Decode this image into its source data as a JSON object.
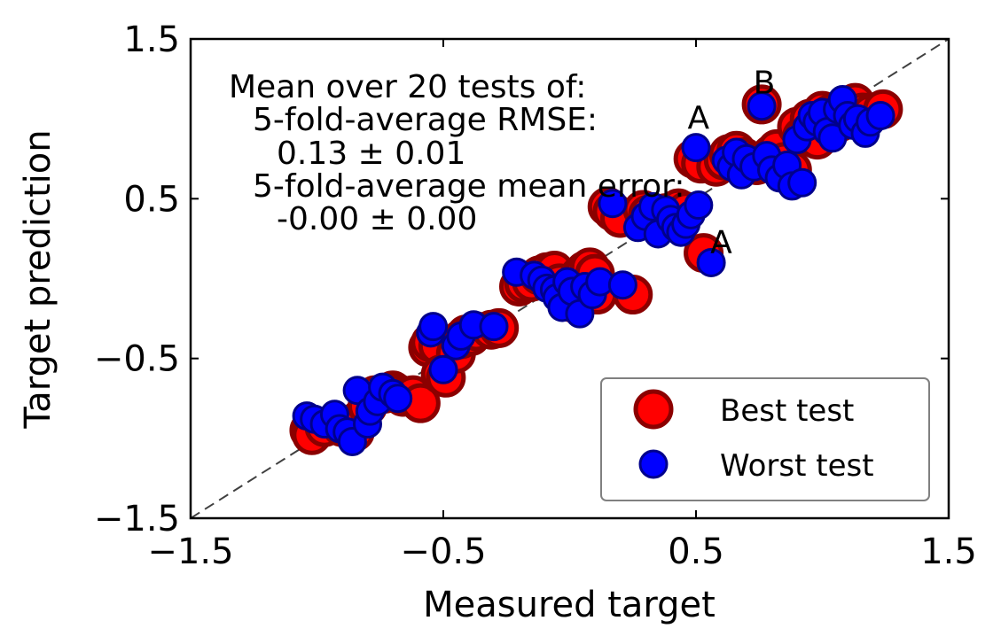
{
  "chart_data": {
    "type": "scatter",
    "title": "",
    "xlabel": "Measured target",
    "ylabel": "Target prediction",
    "xlim": [
      -1.5,
      1.5
    ],
    "ylim": [
      -1.5,
      1.5
    ],
    "xticks": [
      -1.5,
      -0.5,
      0.5,
      1.5
    ],
    "yticks": [
      -1.5,
      -0.5,
      0.5,
      1.5
    ],
    "xtick_labels": [
      "−1.5",
      "−0.5",
      "0.5",
      "1.5"
    ],
    "ytick_labels": [
      "−1.5",
      "−0.5",
      "0.5",
      "1.5"
    ],
    "grid": false,
    "legend_position": "lower-right",
    "reference_line": "y = x (dashed gray)",
    "annotation_lines": [
      "Mean over 20 tests of:",
      "5-fold-average RMSE:",
      "0.13 ± 0.01",
      "5-fold-average mean error:",
      "-0.00 ± 0.00"
    ],
    "point_labels": [
      {
        "text": "A",
        "x": 0.51,
        "y": 0.94
      },
      {
        "text": "A",
        "x": 0.6,
        "y": 0.16
      },
      {
        "text": "B",
        "x": 0.77,
        "y": 1.16
      }
    ],
    "series": [
      {
        "name": "Best test",
        "color": "#ff0000",
        "edge_color": "#8b0000",
        "points": [
          [
            -1.03,
            -0.95
          ],
          [
            -1.02,
            -0.98
          ],
          [
            -0.97,
            -0.93
          ],
          [
            -0.9,
            -0.93
          ],
          [
            -0.85,
            -0.96
          ],
          [
            -0.83,
            -0.88
          ],
          [
            -0.8,
            -0.8
          ],
          [
            -0.77,
            -0.73
          ],
          [
            -0.73,
            -0.72
          ],
          [
            -0.7,
            -0.7
          ],
          [
            -0.68,
            -0.72
          ],
          [
            -0.66,
            -0.74
          ],
          [
            -0.62,
            -0.73
          ],
          [
            -0.59,
            -0.78
          ],
          [
            -0.56,
            -0.43
          ],
          [
            -0.55,
            -0.4
          ],
          [
            -0.52,
            -0.42
          ],
          [
            -0.51,
            -0.6
          ],
          [
            -0.49,
            -0.62
          ],
          [
            -0.45,
            -0.47
          ],
          [
            -0.43,
            -0.38
          ],
          [
            -0.41,
            -0.35
          ],
          [
            -0.39,
            -0.36
          ],
          [
            -0.37,
            -0.33
          ],
          [
            -0.31,
            -0.32
          ],
          [
            -0.28,
            -0.31
          ],
          [
            -0.2,
            -0.05
          ],
          [
            -0.18,
            -0.03
          ],
          [
            -0.15,
            -0.02
          ],
          [
            -0.12,
            0.02
          ],
          [
            -0.09,
            0.04
          ],
          [
            -0.06,
            0.05
          ],
          [
            -0.04,
            -0.03
          ],
          [
            -0.01,
            -0.12
          ],
          [
            0.01,
            -0.15
          ],
          [
            0.04,
            0.02
          ],
          [
            0.06,
            0.05
          ],
          [
            0.08,
            0.07
          ],
          [
            0.1,
            0.03
          ],
          [
            0.11,
            -0.1
          ],
          [
            0.15,
            0.45
          ],
          [
            0.17,
            0.42
          ],
          [
            0.2,
            0.38
          ],
          [
            0.25,
            -0.1
          ],
          [
            0.29,
            0.43
          ],
          [
            0.31,
            0.4
          ],
          [
            0.33,
            0.38
          ],
          [
            0.36,
            0.34
          ],
          [
            0.38,
            0.41
          ],
          [
            0.41,
            0.35
          ],
          [
            0.43,
            0.44
          ],
          [
            0.46,
            0.42
          ],
          [
            0.49,
            0.75
          ],
          [
            0.52,
            0.72
          ],
          [
            0.53,
            0.16
          ],
          [
            0.58,
            0.7
          ],
          [
            0.61,
            0.74
          ],
          [
            0.63,
            0.78
          ],
          [
            0.66,
            0.8
          ],
          [
            0.69,
            0.76
          ],
          [
            0.72,
            0.73
          ],
          [
            0.74,
            0.71
          ],
          [
            0.76,
            1.09
          ],
          [
            0.78,
            0.74
          ],
          [
            0.8,
            0.78
          ],
          [
            0.82,
            0.81
          ],
          [
            0.85,
            0.73
          ],
          [
            0.88,
            0.68
          ],
          [
            0.9,
            0.95
          ],
          [
            0.92,
            0.89
          ],
          [
            0.95,
            1.0
          ],
          [
            0.98,
            0.87
          ],
          [
            1.0,
            1.05
          ],
          [
            1.03,
            1.03
          ],
          [
            1.05,
            1.0
          ],
          [
            1.07,
            0.98
          ],
          [
            1.1,
            1.08
          ],
          [
            1.13,
            1.1
          ],
          [
            1.16,
            1.04
          ],
          [
            1.19,
            1.03
          ],
          [
            1.24,
            1.06
          ]
        ]
      },
      {
        "name": "Worst test",
        "color": "#0000ff",
        "edge_color": "#00008b",
        "points": [
          [
            -1.04,
            -0.86
          ],
          [
            -1.01,
            -0.88
          ],
          [
            -0.97,
            -0.91
          ],
          [
            -0.93,
            -0.85
          ],
          [
            -0.91,
            -0.94
          ],
          [
            -0.88,
            -0.96
          ],
          [
            -0.86,
            -1.02
          ],
          [
            -0.84,
            -0.7
          ],
          [
            -0.8,
            -0.91
          ],
          [
            -0.79,
            -0.83
          ],
          [
            -0.76,
            -0.77
          ],
          [
            -0.74,
            -0.68
          ],
          [
            -0.7,
            -0.72
          ],
          [
            -0.68,
            -0.75
          ],
          [
            -0.55,
            -0.34
          ],
          [
            -0.54,
            -0.3
          ],
          [
            -0.5,
            -0.57
          ],
          [
            -0.45,
            -0.42
          ],
          [
            -0.43,
            -0.36
          ],
          [
            -0.38,
            -0.29
          ],
          [
            -0.3,
            -0.3
          ],
          [
            -0.21,
            0.04
          ],
          [
            -0.14,
            0.02
          ],
          [
            -0.11,
            -0.01
          ],
          [
            -0.09,
            -0.06
          ],
          [
            -0.06,
            -0.07
          ],
          [
            -0.05,
            -0.12
          ],
          [
            -0.03,
            -0.18
          ],
          [
            -0.01,
            -0.02
          ],
          [
            0.01,
            -0.08
          ],
          [
            0.04,
            -0.22
          ],
          [
            0.06,
            -0.05
          ],
          [
            0.09,
            -0.1
          ],
          [
            0.12,
            -0.02
          ],
          [
            0.17,
            0.47
          ],
          [
            0.21,
            -0.04
          ],
          [
            0.27,
            0.32
          ],
          [
            0.3,
            0.39
          ],
          [
            0.33,
            0.45
          ],
          [
            0.35,
            0.28
          ],
          [
            0.38,
            0.43
          ],
          [
            0.4,
            0.37
          ],
          [
            0.42,
            0.32
          ],
          [
            0.44,
            0.29
          ],
          [
            0.46,
            0.34
          ],
          [
            0.48,
            0.4
          ],
          [
            0.5,
            0.82
          ],
          [
            0.51,
            0.46
          ],
          [
            0.56,
            0.1
          ],
          [
            0.62,
            0.74
          ],
          [
            0.64,
            0.7
          ],
          [
            0.66,
            0.79
          ],
          [
            0.68,
            0.65
          ],
          [
            0.7,
            0.75
          ],
          [
            0.73,
            0.7
          ],
          [
            0.76,
            1.08
          ],
          [
            0.78,
            0.77
          ],
          [
            0.8,
            0.68
          ],
          [
            0.83,
            0.63
          ],
          [
            0.86,
            0.71
          ],
          [
            0.88,
            0.58
          ],
          [
            0.9,
            0.87
          ],
          [
            0.92,
            0.6
          ],
          [
            0.94,
            0.95
          ],
          [
            0.96,
            1.02
          ],
          [
            0.98,
            0.98
          ],
          [
            1.0,
            1.04
          ],
          [
            1.02,
            0.92
          ],
          [
            1.04,
            0.88
          ],
          [
            1.06,
            1.06
          ],
          [
            1.08,
            1.12
          ],
          [
            1.1,
            1.02
          ],
          [
            1.12,
            0.96
          ],
          [
            1.14,
            1.0
          ],
          [
            1.17,
            0.91
          ],
          [
            1.19,
            0.98
          ],
          [
            1.23,
            1.02
          ]
        ]
      }
    ]
  }
}
